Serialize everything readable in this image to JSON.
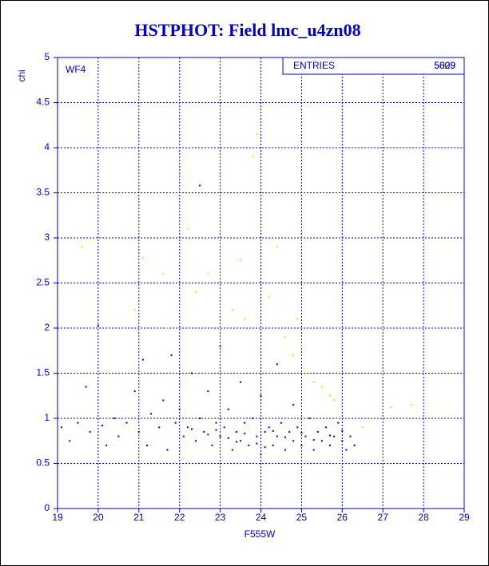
{
  "chart_data": {
    "type": "scatter",
    "title": "HSTPHOT: Field lmc_u4zn08",
    "x_label": "F555W",
    "y_label": "chi",
    "panel_label": "WF4",
    "stats_label": "ENTRIES",
    "stats_values": [
      5809,
      5029
    ],
    "xlim": [
      19,
      29
    ],
    "ylim": [
      0,
      5
    ],
    "xticks": [
      19,
      20,
      21,
      22,
      23,
      24,
      25,
      26,
      27,
      28,
      29
    ],
    "yticks": [
      0,
      0.5,
      1,
      1.5,
      2,
      2.5,
      3,
      3.5,
      4,
      4.5,
      5
    ],
    "grid": true,
    "series": [
      {
        "color": "#0000cc",
        "x": [
          19.1,
          19.3,
          19.5,
          19.7,
          19.8,
          20.0,
          20.1,
          20.2,
          20.4,
          20.5,
          20.7,
          20.9,
          21.0,
          21.1,
          21.2,
          21.3,
          21.5,
          21.6,
          21.7,
          21.8,
          21.9,
          22.0,
          22.1,
          22.2,
          22.3,
          22.4,
          22.5,
          22.5,
          22.6,
          22.7,
          22.8,
          22.9,
          23.0,
          23.0,
          23.1,
          23.2,
          23.3,
          23.4,
          23.5,
          23.5,
          23.6,
          23.7,
          23.8,
          23.9,
          24.0,
          24.0,
          24.1,
          24.2,
          24.3,
          24.4,
          24.4,
          24.5,
          24.6,
          24.7,
          24.8,
          24.8,
          24.9,
          25.0,
          25.1,
          25.2,
          25.3,
          25.4,
          25.5,
          25.6,
          25.7,
          25.8,
          25.9,
          26.0,
          26.1,
          26.2,
          26.3,
          22.3,
          22.7,
          23.2,
          23.6,
          23.9,
          24.3,
          24.6,
          25.0,
          25.3,
          25.7,
          26.0,
          24.1,
          23.4,
          22.9
        ],
        "values": [
          0.9,
          0.75,
          0.95,
          1.35,
          0.85,
          2.03,
          0.92,
          0.7,
          1.0,
          0.8,
          0.95,
          1.3,
          0.85,
          1.65,
          0.7,
          1.05,
          0.9,
          1.2,
          0.65,
          1.7,
          0.95,
          1.1,
          0.8,
          0.9,
          1.5,
          0.75,
          3.58,
          1.0,
          0.85,
          1.3,
          0.7,
          0.95,
          1.8,
          0.8,
          0.9,
          1.1,
          0.65,
          0.85,
          1.4,
          0.75,
          0.95,
          0.7,
          1.0,
          0.8,
          0.6,
          1.25,
          0.85,
          0.9,
          0.7,
          1.6,
          0.8,
          0.95,
          0.65,
          0.85,
          1.15,
          0.75,
          0.9,
          0.7,
          0.8,
          1.0,
          0.65,
          0.85,
          0.75,
          0.9,
          0.7,
          0.8,
          0.95,
          0.75,
          0.65,
          0.8,
          0.7,
          0.88,
          0.82,
          0.78,
          0.83,
          0.72,
          0.86,
          0.79,
          0.84,
          0.76,
          0.81,
          0.86,
          0.68,
          0.74,
          0.87
        ]
      },
      {
        "color": "#e6e600",
        "x": [
          19.6,
          20.9,
          21.1,
          21.6,
          21.7,
          22.0,
          22.2,
          22.4,
          22.7,
          23.0,
          23.3,
          23.5,
          23.8,
          23.9,
          24.2,
          24.4,
          24.6,
          24.9,
          25.1,
          25.3,
          25.5,
          25.7,
          25.8,
          26.5,
          27.2,
          27.7,
          24.8,
          25.0,
          23.6
        ],
        "values": [
          2.9,
          2.2,
          2.78,
          2.6,
          2.0,
          3.7,
          3.1,
          2.4,
          2.6,
          3.7,
          2.2,
          2.75,
          3.9,
          4.15,
          2.35,
          2.9,
          1.9,
          2.1,
          1.5,
          1.4,
          1.35,
          1.25,
          1.2,
          0.9,
          1.12,
          1.15,
          1.7,
          1.8,
          2.1
        ]
      }
    ]
  }
}
